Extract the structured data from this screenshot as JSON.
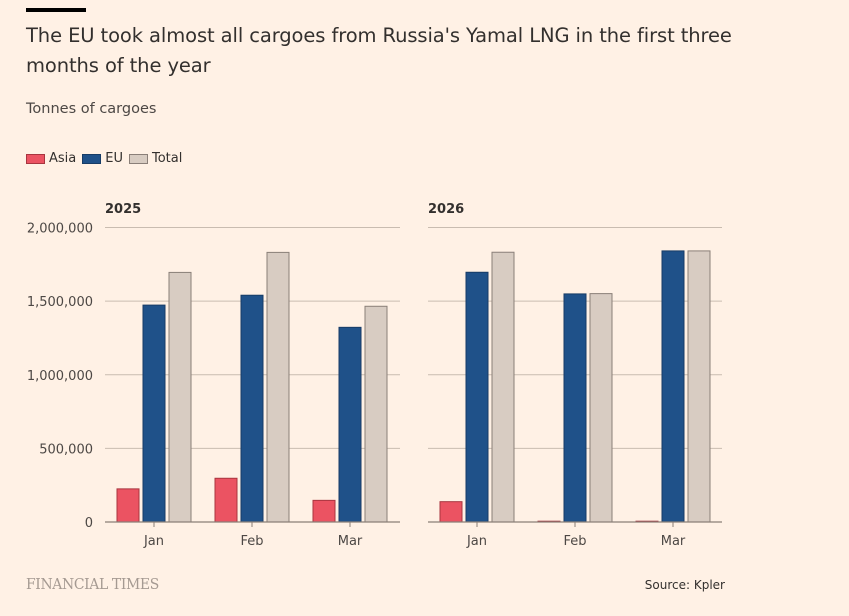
{
  "header": {
    "title": "The EU took almost all cargoes from Russia's Yamal LNG in the first three months of the year",
    "subtitle": "Tonnes of cargoes"
  },
  "legend": [
    {
      "label": "Asia",
      "color": "#eb5362",
      "border": "#a8353f"
    },
    {
      "label": "EU",
      "color": "#1f5189",
      "border": "#173c66"
    },
    {
      "label": "Total",
      "color": "#d8ccc2",
      "border": "#8a7f78"
    }
  ],
  "chart_data": {
    "type": "bar",
    "title": "The EU took almost all cargoes from Russia's Yamal LNG in the first three months of the year",
    "ylabel": "Tonnes of cargoes",
    "xlabel": "",
    "ylim": [
      0,
      2000000
    ],
    "yticks": [
      0,
      500000,
      1000000,
      1500000,
      2000000
    ],
    "ytick_labels": [
      "0",
      "500,000",
      "1,000,000",
      "1,500,000",
      "2,000,000"
    ],
    "grid": true,
    "legend_position": "top-left",
    "categories": [
      "Jan",
      "Feb",
      "Mar"
    ],
    "panels": [
      {
        "name": "2025",
        "series": [
          {
            "name": "Asia",
            "values": [
              225000,
              297000,
              147000
            ]
          },
          {
            "name": "EU",
            "values": [
              1473000,
              1540000,
              1322000
            ]
          },
          {
            "name": "Total",
            "values": [
              1695000,
              1831000,
              1465000
            ]
          }
        ]
      },
      {
        "name": "2026",
        "series": [
          {
            "name": "Asia",
            "values": [
              138000,
              5000,
              5000
            ]
          },
          {
            "name": "EU",
            "values": [
              1696000,
              1549000,
              1841000
            ]
          },
          {
            "name": "Total",
            "values": [
              1832000,
              1551000,
              1841000
            ]
          }
        ]
      }
    ]
  },
  "footer": {
    "brand": "FINANCIAL TIMES",
    "source": "Source: Kpler"
  }
}
